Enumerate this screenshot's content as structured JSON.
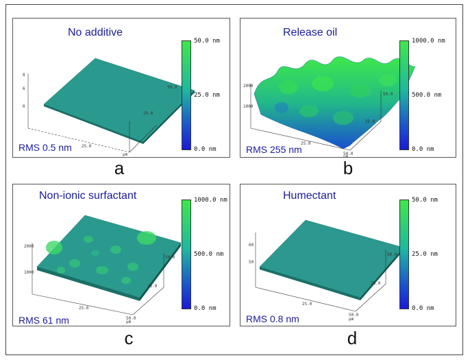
{
  "panels": [
    {
      "title": "No additive",
      "rms": "RMS 0.5 nm",
      "letter": "a",
      "scale": {
        "top": "50.0 nm",
        "mid": "25.0 nm",
        "bottom": "0.0 nm"
      },
      "axis": {
        "z": [
          "0",
          "6",
          "8"
        ],
        "y": [
          "25.0",
          "50.0"
        ],
        "x": [
          "25.0"
        ],
        "unit": "μm"
      }
    },
    {
      "title": "Release oil",
      "rms": "RMS 255 nm",
      "letter": "b",
      "scale": {
        "top": "1000.0 nm",
        "mid": "500.0 nm",
        "bottom": "0.0 nm"
      },
      "axis": {
        "z": [
          "1000",
          "2000"
        ],
        "y": [
          "25.0",
          "50.0"
        ],
        "x": [
          "25.0",
          "50.0"
        ],
        "unit": "μm"
      }
    },
    {
      "title": "Non-ionic surfactant",
      "rms": "RMS 61 nm",
      "letter": "c",
      "scale": {
        "top": "1000.0 nm",
        "mid": "500.0 nm",
        "bottom": "0.0 nm"
      },
      "axis": {
        "z": [
          "1000",
          "2000"
        ],
        "y": [
          "25.0",
          "50.0"
        ],
        "x": [
          "25.0",
          "50.0"
        ],
        "unit": "μm"
      }
    },
    {
      "title": "Humectant",
      "rms": "RMS 0.8 nm",
      "letter": "d",
      "scale": {
        "top": "50.0 nm",
        "mid": "25.0 nm",
        "bottom": "0.0 nm"
      },
      "axis": {
        "z": [
          "50",
          "60"
        ],
        "y": [
          "25.0",
          "50.0"
        ],
        "x": [
          "25.0",
          "50.0"
        ],
        "unit": "μm"
      }
    }
  ],
  "colors": {
    "title": "#1a1a9c",
    "surface_top": "#3ee84a",
    "surface_mid": "#1fb8a0",
    "surface_low": "#1a4fd0"
  }
}
